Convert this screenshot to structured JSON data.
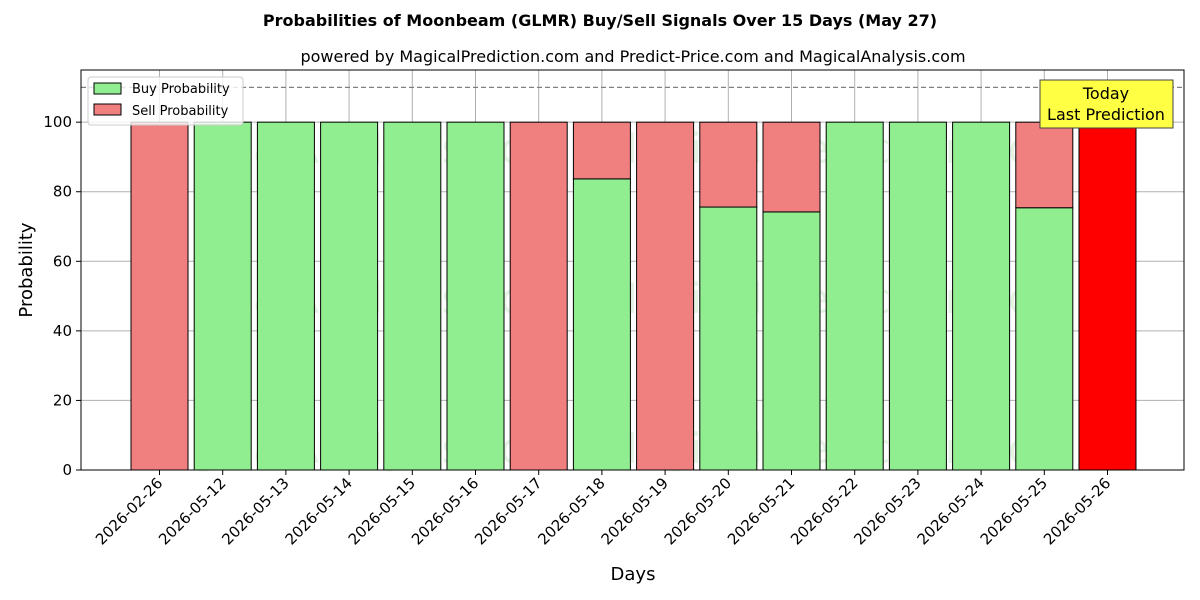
{
  "chart_data": {
    "type": "bar",
    "title": "Probabilities of Moonbeam (GLMR) Buy/Sell Signals Over 15 Days (May 27)",
    "subtitle": "powered by MagicalPrediction.com and Predict-Price.com and MagicalAnalysis.com",
    "xlabel": "Days",
    "ylabel": "Probability",
    "ylim": [
      0,
      115
    ],
    "yticks": [
      0,
      20,
      40,
      60,
      80,
      100
    ],
    "grid": true,
    "legend_position": "top-left",
    "reference_line": 110,
    "categories": [
      "2026-02-26",
      "2026-05-12",
      "2026-05-13",
      "2026-05-14",
      "2026-05-15",
      "2026-05-16",
      "2026-05-17",
      "2026-05-18",
      "2026-05-19",
      "2026-05-20",
      "2026-05-21",
      "2026-05-22",
      "2026-05-23",
      "2026-05-24",
      "2026-05-25",
      "2026-05-26"
    ],
    "series": [
      {
        "name": "Buy Probability",
        "color": "#90ee90",
        "values": [
          0,
          100,
          100,
          100,
          100,
          100,
          0,
          83.7,
          0,
          75.6,
          74.2,
          100,
          100,
          100,
          75.4,
          0
        ]
      },
      {
        "name": "Sell Probability",
        "color": "#f08080",
        "values": [
          100,
          0,
          0,
          0,
          0,
          0,
          100,
          16.3,
          100,
          24.4,
          25.8,
          0,
          0,
          0,
          24.6,
          100
        ]
      }
    ],
    "highlight": {
      "category": "2026-05-26",
      "color": "#ff0000"
    },
    "annotation": {
      "line1": "Today",
      "line2": "Last Prediction",
      "bg": "#ffff44"
    },
    "watermarks": [
      "MagicalAnalysis.com",
      "MagicalPrediction.com"
    ]
  }
}
